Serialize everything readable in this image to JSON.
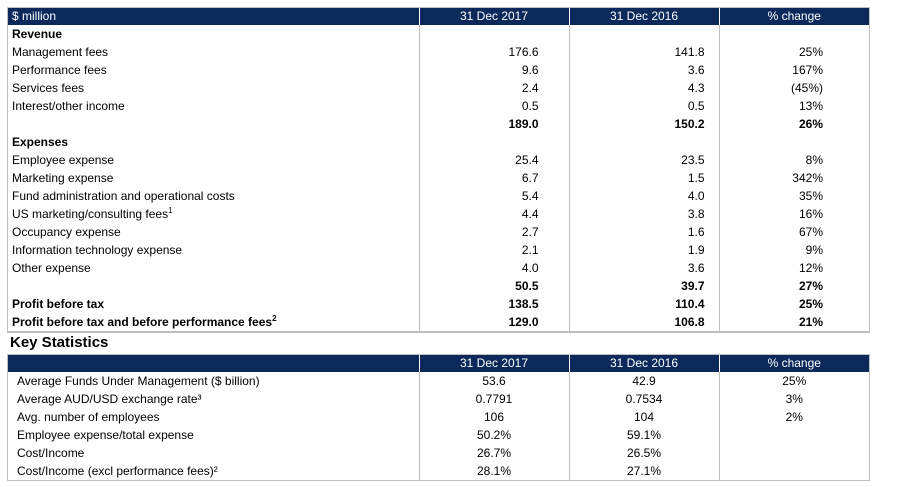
{
  "income_table": {
    "headers": [
      "$ million",
      "31 Dec 2017",
      "31 Dec 2016",
      "% change"
    ],
    "rows": [
      {
        "label": "Revenue",
        "v1": "",
        "v2": "",
        "pct": "",
        "type": "section"
      },
      {
        "label": "Management fees",
        "v1": "176.6",
        "v2": "141.8",
        "pct": "25%",
        "type": "normal"
      },
      {
        "label": "Performance fees",
        "v1": "9.6",
        "v2": "3.6",
        "pct": "167%",
        "type": "normal"
      },
      {
        "label": "Services fees",
        "v1": "2.4",
        "v2": "4.3",
        "pct": "(45%)",
        "type": "normal"
      },
      {
        "label": "Interest/other income",
        "v1": "0.5",
        "v2": "0.5",
        "pct": "13%",
        "type": "normal"
      },
      {
        "label": "",
        "v1": "189.0",
        "v2": "150.2",
        "pct": "26%",
        "type": "bold"
      },
      {
        "label": "Expenses",
        "v1": "",
        "v2": "",
        "pct": "",
        "type": "section"
      },
      {
        "label": "Employee expense",
        "v1": "25.4",
        "v2": "23.5",
        "pct": "8%",
        "type": "normal"
      },
      {
        "label": "Marketing expense",
        "v1": "6.7",
        "v2": "1.5",
        "pct": "342%",
        "type": "normal"
      },
      {
        "label": "Fund administration and operational costs",
        "v1": "5.4",
        "v2": "4.0",
        "pct": "35%",
        "type": "normal"
      },
      {
        "label": "US marketing/consulting fees",
        "sup": "1",
        "v1": "4.4",
        "v2": "3.8",
        "pct": "16%",
        "type": "normal"
      },
      {
        "label": "Occupancy expense",
        "v1": "2.7",
        "v2": "1.6",
        "pct": "67%",
        "type": "normal"
      },
      {
        "label": "Information technology expense",
        "v1": "2.1",
        "v2": "1.9",
        "pct": "9%",
        "type": "normal"
      },
      {
        "label": "Other expense",
        "v1": "4.0",
        "v2": "3.6",
        "pct": "12%",
        "type": "normal"
      },
      {
        "label": "",
        "v1": "50.5",
        "v2": "39.7",
        "pct": "27%",
        "type": "bold"
      },
      {
        "label": "Profit before tax",
        "v1": "138.5",
        "v2": "110.4",
        "pct": "25%",
        "type": "bold"
      },
      {
        "label": "Profit before tax and before performance fees",
        "sup": "2",
        "v1": "129.0",
        "v2": "106.8",
        "pct": "21%",
        "type": "bold"
      }
    ]
  },
  "key_statistics": {
    "title": "Key Statistics",
    "headers": [
      "",
      "31 Dec 2017",
      "31 Dec 2016",
      "% change"
    ],
    "rows": [
      {
        "label": "Average Funds Under Management ($ billion)",
        "v1": "53.6",
        "v2": "42.9",
        "pct": "25%"
      },
      {
        "label": "Average AUD/USD exchange rate³",
        "v1": "0.7791",
        "v2": "0.7534",
        "pct": "3%"
      },
      {
        "label": "Avg. number of employees",
        "v1": "106",
        "v2": "104",
        "pct": "2%"
      },
      {
        "label": "Employee expense/total expense",
        "v1": "50.2%",
        "v2": "59.1%",
        "pct": ""
      },
      {
        "label": "Cost/Income",
        "v1": "26.7%",
        "v2": "26.5%",
        "pct": ""
      },
      {
        "label": "Cost/Income (excl performance fees)²",
        "v1": "28.1%",
        "v2": "27.1%",
        "pct": ""
      }
    ]
  },
  "colors": {
    "header_bg": "#0b2a5b",
    "header_text": "#ffffff",
    "grid": "#bfbfbf"
  }
}
